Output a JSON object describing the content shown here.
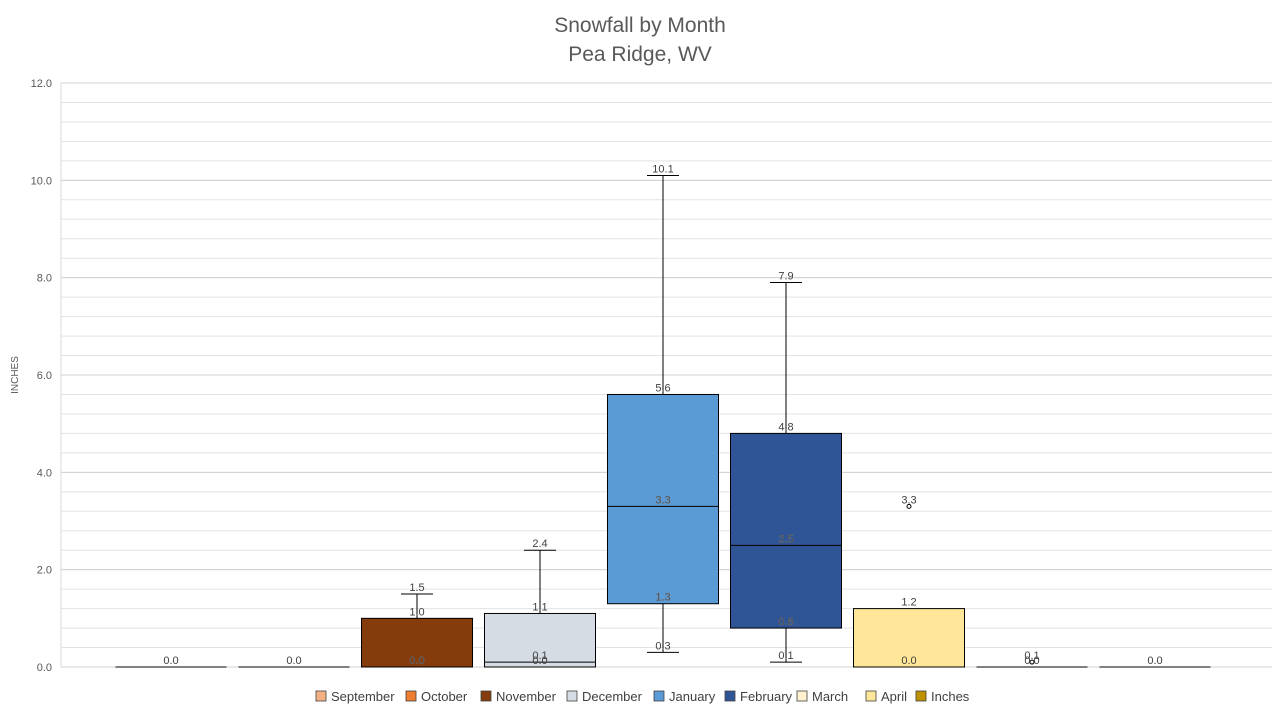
{
  "chart_data": {
    "type": "boxplot",
    "title": [
      "Snowfall by Month",
      "Pea Ridge, WV"
    ],
    "ylabel": "INCHES",
    "ylim": [
      0,
      12
    ],
    "yticks": [
      "0.0",
      "2.0",
      "4.0",
      "6.0",
      "8.0",
      "10.0",
      "12.0"
    ],
    "minor_grid_step": 0.4,
    "grid": true,
    "legend_position": "bottom",
    "legend": [
      {
        "name": "September",
        "color": "#F4B183"
      },
      {
        "name": "October",
        "color": "#ED7D31"
      },
      {
        "name": "November",
        "color": "#843C0C"
      },
      {
        "name": "December",
        "color": "#D6DCE4"
      },
      {
        "name": "January",
        "color": "#5B9BD5"
      },
      {
        "name": "February",
        "color": "#2F5597"
      },
      {
        "name": "March",
        "color": "#FFF2CC"
      },
      {
        "name": "April",
        "color": "#FFE699"
      },
      {
        "name": "Inches",
        "color": "#BF9000"
      }
    ],
    "series": [
      {
        "name": "September",
        "color": "#F4B183",
        "min": 0.0,
        "q1": 0.0,
        "median": 0.0,
        "q3": 0.0,
        "max": 0.0,
        "outliers": [],
        "labels": [
          {
            "v": 0.0,
            "t": "0.0"
          }
        ]
      },
      {
        "name": "October",
        "color": "#ED7D31",
        "min": 0.0,
        "q1": 0.0,
        "median": 0.0,
        "q3": 0.0,
        "max": 0.0,
        "outliers": [],
        "labels": [
          {
            "v": 0.0,
            "t": "0.0"
          }
        ]
      },
      {
        "name": "November",
        "color": "#843C0C",
        "min": 0.0,
        "q1": 0.0,
        "median": 0.0,
        "q3": 1.0,
        "max": 1.5,
        "outliers": [],
        "labels": [
          {
            "v": 1.5,
            "t": "1.5"
          },
          {
            "v": 1.0,
            "t": "1.0"
          },
          {
            "v": 0.0,
            "t": "0.0",
            "inside": true
          }
        ]
      },
      {
        "name": "December",
        "color": "#D6DCE4",
        "min": 0.0,
        "q1": 0.0,
        "median": 0.1,
        "q3": 1.1,
        "max": 2.4,
        "outliers": [],
        "labels": [
          {
            "v": 2.4,
            "t": "2.4"
          },
          {
            "v": 1.1,
            "t": "1.1"
          },
          {
            "v": 0.1,
            "t": "0.1"
          },
          {
            "v": 0.0,
            "t": "0.0"
          }
        ]
      },
      {
        "name": "January",
        "color": "#5B9BD5",
        "min": 0.3,
        "q1": 1.3,
        "median": 3.3,
        "q3": 5.6,
        "max": 10.1,
        "outliers": [],
        "labels": [
          {
            "v": 10.1,
            "t": "10.1"
          },
          {
            "v": 5.6,
            "t": "5.6"
          },
          {
            "v": 3.3,
            "t": "3.3",
            "inside": true
          },
          {
            "v": 1.3,
            "t": "1.3",
            "inside": true
          },
          {
            "v": 0.3,
            "t": "0.3"
          }
        ]
      },
      {
        "name": "February",
        "color": "#2F5597",
        "min": 0.1,
        "q1": 0.8,
        "median": 2.5,
        "q3": 4.8,
        "max": 7.9,
        "outliers": [],
        "labels": [
          {
            "v": 7.9,
            "t": "7.9"
          },
          {
            "v": 4.8,
            "t": "4.8"
          },
          {
            "v": 2.5,
            "t": "2.5",
            "inside": true
          },
          {
            "v": 0.8,
            "t": "0.8",
            "inside": true
          },
          {
            "v": 0.1,
            "t": "0.1"
          }
        ]
      },
      {
        "name": "March",
        "color": "#FFE699",
        "min": 0.0,
        "q1": 0.0,
        "median": 0.0,
        "q3": 1.2,
        "max": 1.2,
        "outliers": [
          3.3
        ],
        "labels": [
          {
            "v": 3.3,
            "t": "3.3"
          },
          {
            "v": 1.2,
            "t": "1.2"
          },
          {
            "v": 0.0,
            "t": "0.0"
          }
        ]
      },
      {
        "name": "April",
        "color": "#FFE699",
        "min": 0.0,
        "q1": 0.0,
        "median": 0.0,
        "q3": 0.0,
        "max": 0.0,
        "outliers": [
          0.1
        ],
        "labels": [
          {
            "v": 0.1,
            "t": "0.1"
          },
          {
            "v": 0.0,
            "t": "0.0"
          }
        ]
      },
      {
        "name": "Inches",
        "color": "#BF9000",
        "min": 0.0,
        "q1": 0.0,
        "median": 0.0,
        "q3": 0.0,
        "max": 0.0,
        "outliers": [],
        "labels": [
          {
            "v": 0.0,
            "t": "0.0"
          }
        ]
      }
    ]
  }
}
